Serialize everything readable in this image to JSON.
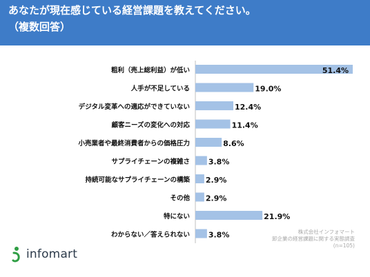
{
  "header": {
    "title": "あなたが現在感じている経営課題を教えてください。",
    "subtitle": "（複数回答）"
  },
  "chart_data": {
    "type": "bar",
    "orientation": "horizontal",
    "title": "",
    "xlabel": "",
    "ylabel": "",
    "unit": "%",
    "xlim": [
      0,
      51.4
    ],
    "categories": [
      "粗利（売上総利益）が低い",
      "人手が不足している",
      "デジタル変革への適応ができていない",
      "顧客ニーズの変化への対応",
      "小売業者や最終消費者からの価格圧力",
      "サプライチェーンの複雑さ",
      "持続可能なサプライチェーンの構築",
      "その他",
      "特にない",
      "わからない／答えられない"
    ],
    "values": [
      51.4,
      19.0,
      12.4,
      11.4,
      8.6,
      3.8,
      2.9,
      2.9,
      21.9,
      3.8
    ],
    "value_labels": [
      "51.4%",
      "19.0%",
      "12.4%",
      "11.4%",
      "8.6%",
      "3.8%",
      "2.9%",
      "2.9%",
      "21.9%",
      "3.8%"
    ],
    "bar_color": "#a4c2e6",
    "grid": false,
    "legend": "none"
  },
  "logo": {
    "text": "infomart"
  },
  "source": {
    "lines": [
      "株式会社インフォマート",
      "卸企業の経営課題に関する実態調査",
      "(n=105)"
    ]
  },
  "colors": {
    "header_bg": "#3e7cc8",
    "panel_bg": "#ffffff",
    "axis": "#bfbfbf",
    "label_text": "#111111"
  }
}
